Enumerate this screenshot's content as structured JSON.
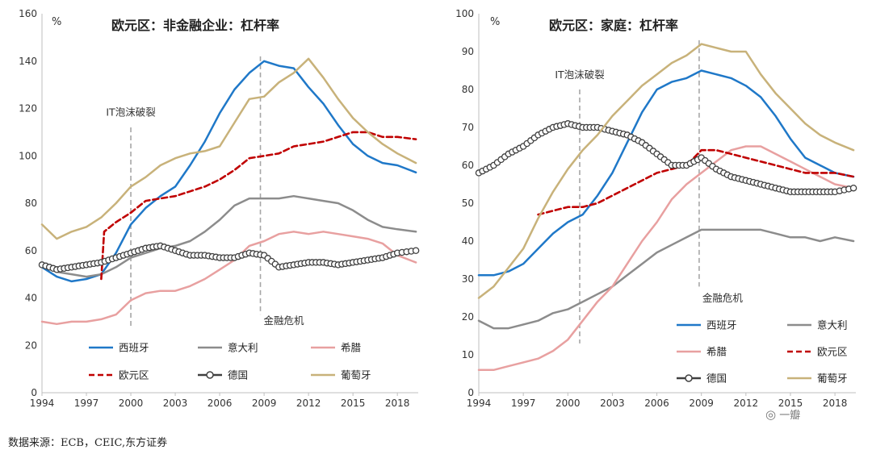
{
  "charts": {
    "left": {
      "type": "line",
      "title": "欧元区：非金融企业：杠杆率",
      "unit_label": "%",
      "x_range": [
        1994,
        2019.3
      ],
      "y_range": [
        0,
        160
      ],
      "x_ticks": [
        1994,
        1997,
        2000,
        2003,
        2006,
        2009,
        2012,
        2015,
        2018
      ],
      "y_ticks": [
        0,
        20,
        40,
        60,
        80,
        100,
        120,
        140,
        160
      ],
      "annotations": [
        {
          "text": "IT泡沫破裂",
          "x": 2000,
          "line_from": 28,
          "line_to": 112,
          "label_y": 117,
          "anchor": "middle"
        },
        {
          "text": "金融危机",
          "x": 2008.75,
          "line_from": 33,
          "line_to": 142,
          "label_y": 29,
          "anchor": "start"
        }
      ],
      "series": [
        {
          "name": "西班牙",
          "color": "#1f78c8",
          "style": "solid",
          "x": [
            1994,
            1995,
            1996,
            1997,
            1998,
            1999,
            2000,
            2001,
            2002,
            2003,
            2004,
            2005,
            2006,
            2007,
            2008,
            2009,
            2010,
            2011,
            2012,
            2013,
            2014,
            2015,
            2016,
            2017,
            2018,
            2019.25
          ],
          "y": [
            53,
            49,
            47,
            48,
            50,
            59,
            71,
            78,
            83,
            87,
            96,
            106,
            118,
            128,
            135,
            140,
            138,
            137,
            129,
            122,
            113,
            105,
            100,
            97,
            96,
            93
          ]
        },
        {
          "name": "意大利",
          "color": "#8c8c8c",
          "style": "solid",
          "x": [
            1994,
            1995,
            1996,
            1997,
            1998,
            1999,
            2000,
            2001,
            2002,
            2003,
            2004,
            2005,
            2006,
            2007,
            2008,
            2009,
            2010,
            2011,
            2012,
            2013,
            2014,
            2015,
            2016,
            2017,
            2018,
            2019.25
          ],
          "y": [
            54,
            51,
            50,
            49,
            50,
            53,
            57,
            59,
            61,
            62,
            64,
            68,
            73,
            79,
            82,
            82,
            82,
            83,
            82,
            81,
            80,
            77,
            73,
            70,
            69,
            68
          ]
        },
        {
          "name": "希腊",
          "color": "#e8a0a0",
          "style": "solid",
          "x": [
            1994,
            1995,
            1996,
            1997,
            1998,
            1999,
            2000,
            2001,
            2002,
            2003,
            2004,
            2005,
            2006,
            2007,
            2008,
            2009,
            2010,
            2011,
            2012,
            2013,
            2014,
            2015,
            2016,
            2017,
            2018,
            2019.25
          ],
          "y": [
            30,
            29,
            30,
            30,
            31,
            33,
            39,
            42,
            43,
            43,
            45,
            48,
            52,
            56,
            62,
            64,
            67,
            68,
            67,
            68,
            67,
            66,
            65,
            63,
            58,
            55
          ]
        },
        {
          "name": "欧元区",
          "color": "#c00000",
          "style": "dashed",
          "x": [
            1994,
            1995,
            1996,
            1997,
            1998,
            1998.2,
            1999,
            2000,
            2001,
            2002,
            2003,
            2004,
            2005,
            2006,
            2007,
            2008,
            2009,
            2010,
            2011,
            2012,
            2013,
            2014,
            2015,
            2016,
            2017,
            2018,
            2019.25
          ],
          "y": [
            null,
            null,
            null,
            null,
            48,
            68,
            72,
            76,
            81,
            82,
            83,
            85,
            87,
            90,
            94,
            99,
            100,
            101,
            104,
            105,
            106,
            108,
            110,
            110,
            108,
            108,
            107
          ]
        },
        {
          "name": "德国",
          "color": "#404040",
          "style": "marker",
          "x": [
            1994,
            1995,
            1996,
            1997,
            1998,
            1999,
            2000,
            2001,
            2002,
            2003,
            2004,
            2005,
            2006,
            2007,
            2008,
            2009,
            2010,
            2011,
            2012,
            2013,
            2014,
            2015,
            2016,
            2017,
            2018,
            2019.25
          ],
          "y": [
            54,
            52,
            53,
            54,
            55,
            57,
            59,
            61,
            62,
            60,
            58,
            58,
            57,
            57,
            59,
            58,
            53,
            54,
            55,
            55,
            54,
            55,
            56,
            57,
            59,
            60
          ]
        },
        {
          "name": "葡萄牙",
          "color": "#c8b27a",
          "style": "solid",
          "x": [
            1994,
            1995,
            1996,
            1997,
            1998,
            1999,
            2000,
            2001,
            2002,
            2003,
            2004,
            2005,
            2006,
            2007,
            2008,
            2009,
            2010,
            2011,
            2012,
            2013,
            2014,
            2015,
            2016,
            2017,
            2018,
            2019.25
          ],
          "y": [
            71,
            65,
            68,
            70,
            74,
            80,
            87,
            91,
            96,
            99,
            101,
            102,
            104,
            114,
            124,
            125,
            131,
            135,
            141,
            133,
            124,
            116,
            110,
            105,
            101,
            97
          ]
        }
      ],
      "legend": [
        {
          "name": "西班牙",
          "color": "#1f78c8",
          "style": "solid"
        },
        {
          "name": "意大利",
          "color": "#8c8c8c",
          "style": "solid"
        },
        {
          "name": "希腊",
          "color": "#e8a0a0",
          "style": "solid"
        },
        {
          "name": "欧元区",
          "color": "#c00000",
          "style": "dashed"
        },
        {
          "name": "德国",
          "color": "#404040",
          "style": "marker"
        },
        {
          "name": "葡萄牙",
          "color": "#c8b27a",
          "style": "solid"
        }
      ]
    },
    "right": {
      "type": "line",
      "title": "欧元区：家庭：杠杆率",
      "unit_label": "%",
      "x_range": [
        1994,
        2019.3
      ],
      "y_range": [
        0,
        100
      ],
      "x_ticks": [
        1994,
        1997,
        2000,
        2003,
        2006,
        2009,
        2012,
        2015,
        2018
      ],
      "y_ticks": [
        0,
        10,
        20,
        30,
        40,
        50,
        60,
        70,
        80,
        90,
        100
      ],
      "annotations": [
        {
          "text": "IT泡沫破裂",
          "x": 2000.8,
          "line_from": 13,
          "line_to": 80,
          "label_y": 83,
          "anchor": "middle"
        },
        {
          "text": "金融危机",
          "x": 2008.85,
          "line_from": 28,
          "line_to": 93,
          "label_y": 24,
          "anchor": "start"
        }
      ],
      "series": [
        {
          "name": "西班牙",
          "color": "#1f78c8",
          "style": "solid",
          "x": [
            1994,
            1995,
            1996,
            1997,
            1998,
            1999,
            2000,
            2001,
            2002,
            2003,
            2004,
            2005,
            2006,
            2007,
            2008,
            2009,
            2010,
            2011,
            2012,
            2013,
            2014,
            2015,
            2016,
            2017,
            2018,
            2019.25
          ],
          "y": [
            31,
            31,
            32,
            34,
            38,
            42,
            45,
            47,
            52,
            58,
            66,
            74,
            80,
            82,
            83,
            85,
            84,
            83,
            81,
            78,
            73,
            67,
            62,
            60,
            58,
            57
          ]
        },
        {
          "name": "意大利",
          "color": "#8c8c8c",
          "style": "solid",
          "x": [
            1994,
            1995,
            1996,
            1997,
            1998,
            1999,
            2000,
            2001,
            2002,
            2003,
            2004,
            2005,
            2006,
            2007,
            2008,
            2009,
            2010,
            2011,
            2012,
            2013,
            2014,
            2015,
            2016,
            2017,
            2018,
            2019.25
          ],
          "y": [
            19,
            17,
            17,
            18,
            19,
            21,
            22,
            24,
            26,
            28,
            31,
            34,
            37,
            39,
            41,
            43,
            43,
            43,
            43,
            43,
            42,
            41,
            41,
            40,
            41,
            40
          ]
        },
        {
          "name": "希腊",
          "color": "#e8a0a0",
          "style": "solid",
          "x": [
            1994,
            1995,
            1996,
            1997,
            1998,
            1999,
            2000,
            2001,
            2002,
            2003,
            2004,
            2005,
            2006,
            2007,
            2008,
            2009,
            2010,
            2011,
            2012,
            2013,
            2014,
            2015,
            2016,
            2017,
            2018,
            2019.25
          ],
          "y": [
            6,
            6,
            7,
            8,
            9,
            11,
            14,
            19,
            24,
            28,
            34,
            40,
            45,
            51,
            55,
            58,
            61,
            64,
            65,
            65,
            63,
            61,
            59,
            57,
            55,
            54
          ]
        },
        {
          "name": "欧元区",
          "color": "#c00000",
          "style": "dashed",
          "x": [
            1994,
            1995,
            1996,
            1997,
            1998,
            1999,
            2000,
            2001,
            2002,
            2003,
            2004,
            2005,
            2006,
            2007,
            2008,
            2009,
            2010,
            2011,
            2012,
            2013,
            2014,
            2015,
            2016,
            2017,
            2018,
            2019.25
          ],
          "y": [
            null,
            null,
            null,
            null,
            47,
            48,
            49,
            49,
            50,
            52,
            54,
            56,
            58,
            59,
            60,
            64,
            64,
            63,
            62,
            61,
            60,
            59,
            58,
            58,
            58,
            57
          ]
        },
        {
          "name": "德国",
          "color": "#404040",
          "style": "marker",
          "x": [
            1994,
            1995,
            1996,
            1997,
            1998,
            1999,
            2000,
            2001,
            2002,
            2003,
            2004,
            2005,
            2006,
            2007,
            2008,
            2009,
            2010,
            2011,
            2012,
            2013,
            2014,
            2015,
            2016,
            2017,
            2018,
            2019.25
          ],
          "y": [
            58,
            60,
            63,
            65,
            68,
            70,
            71,
            70,
            70,
            69,
            68,
            66,
            63,
            60,
            60,
            62,
            59,
            57,
            56,
            55,
            54,
            53,
            53,
            53,
            53,
            54
          ]
        },
        {
          "name": "葡萄牙",
          "color": "#c8b27a",
          "style": "solid",
          "x": [
            1994,
            1995,
            1996,
            1997,
            1998,
            1999,
            2000,
            2001,
            2002,
            2003,
            2004,
            2005,
            2006,
            2007,
            2008,
            2009,
            2010,
            2011,
            2012,
            2013,
            2014,
            2015,
            2016,
            2017,
            2018,
            2019.25
          ],
          "y": [
            25,
            28,
            33,
            38,
            46,
            53,
            59,
            64,
            68,
            73,
            77,
            81,
            84,
            87,
            89,
            92,
            91,
            90,
            90,
            84,
            79,
            75,
            71,
            68,
            66,
            64
          ]
        }
      ],
      "legend": [
        {
          "name": "西班牙",
          "color": "#1f78c8",
          "style": "solid"
        },
        {
          "name": "意大利",
          "color": "#8c8c8c",
          "style": "solid"
        },
        {
          "name": "希腊",
          "color": "#e8a0a0",
          "style": "solid"
        },
        {
          "name": "欧元区",
          "color": "#c00000",
          "style": "dashed"
        },
        {
          "name": "德国",
          "color": "#404040",
          "style": "marker"
        },
        {
          "name": "葡萄牙",
          "color": "#c8b27a",
          "style": "solid"
        }
      ]
    }
  },
  "chart_data": [
    {
      "type": "line",
      "title": "欧元区：非金融企业：杠杆率",
      "ylabel": "%",
      "ylim": [
        0,
        160
      ],
      "xlim": [
        1994,
        2019
      ]
    },
    {
      "type": "line",
      "title": "欧元区：家庭：杠杆率",
      "ylabel": "%",
      "ylim": [
        0,
        100
      ],
      "xlim": [
        1994,
        2019
      ]
    }
  ],
  "footer": {
    "source": "数据来源：ECB，CEIC,东方证券",
    "watermark": "一瓣"
  }
}
